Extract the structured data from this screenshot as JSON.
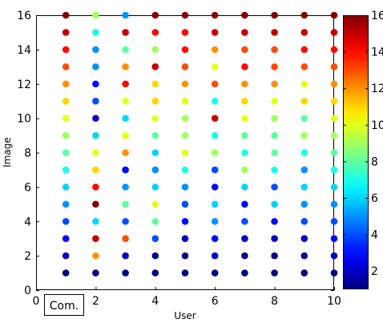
{
  "chart_data": {
    "type": "scatter",
    "xlabel": "User",
    "ylabel": "Image",
    "xlim": [
      0,
      10
    ],
    "ylim": [
      0,
      16
    ],
    "xticks": [
      "0",
      "2",
      "4",
      "6",
      "8",
      "10"
    ],
    "yticks": [
      "0",
      "2",
      "4",
      "6",
      "8",
      "10",
      "12",
      "14",
      "16"
    ],
    "annotation": "Com.",
    "grid": false,
    "colorbar": {
      "colormap": "jet",
      "range": [
        1,
        16
      ],
      "ticks": [
        "2",
        "4",
        "6",
        "8",
        "10",
        "12",
        "14",
        "16"
      ]
    },
    "x": [
      1,
      2,
      3,
      4,
      5,
      6,
      7,
      8,
      9,
      10
    ],
    "y": [
      1,
      2,
      3,
      4,
      5,
      6,
      7,
      8,
      9,
      10,
      11,
      12,
      13,
      14,
      15,
      16
    ],
    "values": [
      [
        1,
        1,
        1,
        1,
        1,
        1,
        1,
        1,
        1,
        1
      ],
      [
        2,
        12,
        2,
        1,
        1,
        2,
        1,
        1,
        1,
        2
      ],
      [
        3,
        15,
        13,
        4,
        2,
        3,
        2,
        2,
        2,
        3
      ],
      [
        4,
        6,
        4,
        8,
        3,
        5,
        4,
        3,
        4,
        4
      ],
      [
        5,
        16,
        8,
        10,
        4,
        6,
        3,
        6,
        5,
        5
      ],
      [
        6,
        14,
        5,
        6,
        5,
        3,
        6,
        4,
        6,
        6
      ],
      [
        7,
        11,
        3,
        5,
        7,
        4,
        9,
        7,
        5,
        7
      ],
      [
        8,
        10,
        12,
        6,
        10,
        9,
        7,
        8,
        7,
        8
      ],
      [
        9,
        6,
        10,
        8,
        9,
        7,
        8,
        8,
        9,
        9
      ],
      [
        10,
        2,
        6,
        10,
        9,
        15,
        10,
        9,
        8,
        10
      ],
      [
        11,
        4,
        10,
        11,
        10,
        7,
        11,
        10,
        11,
        11
      ],
      [
        12,
        3,
        14,
        11,
        12,
        13,
        12,
        12,
        10,
        12
      ],
      [
        13,
        5,
        12,
        15,
        13,
        10,
        14,
        13,
        13,
        13
      ],
      [
        14,
        5,
        8,
        9,
        14,
        12,
        13,
        13,
        14,
        14
      ],
      [
        15,
        7,
        15,
        14,
        14,
        15,
        15,
        15,
        15,
        15
      ],
      [
        16,
        9,
        5,
        16,
        16,
        16,
        16,
        16,
        16,
        16
      ]
    ]
  }
}
